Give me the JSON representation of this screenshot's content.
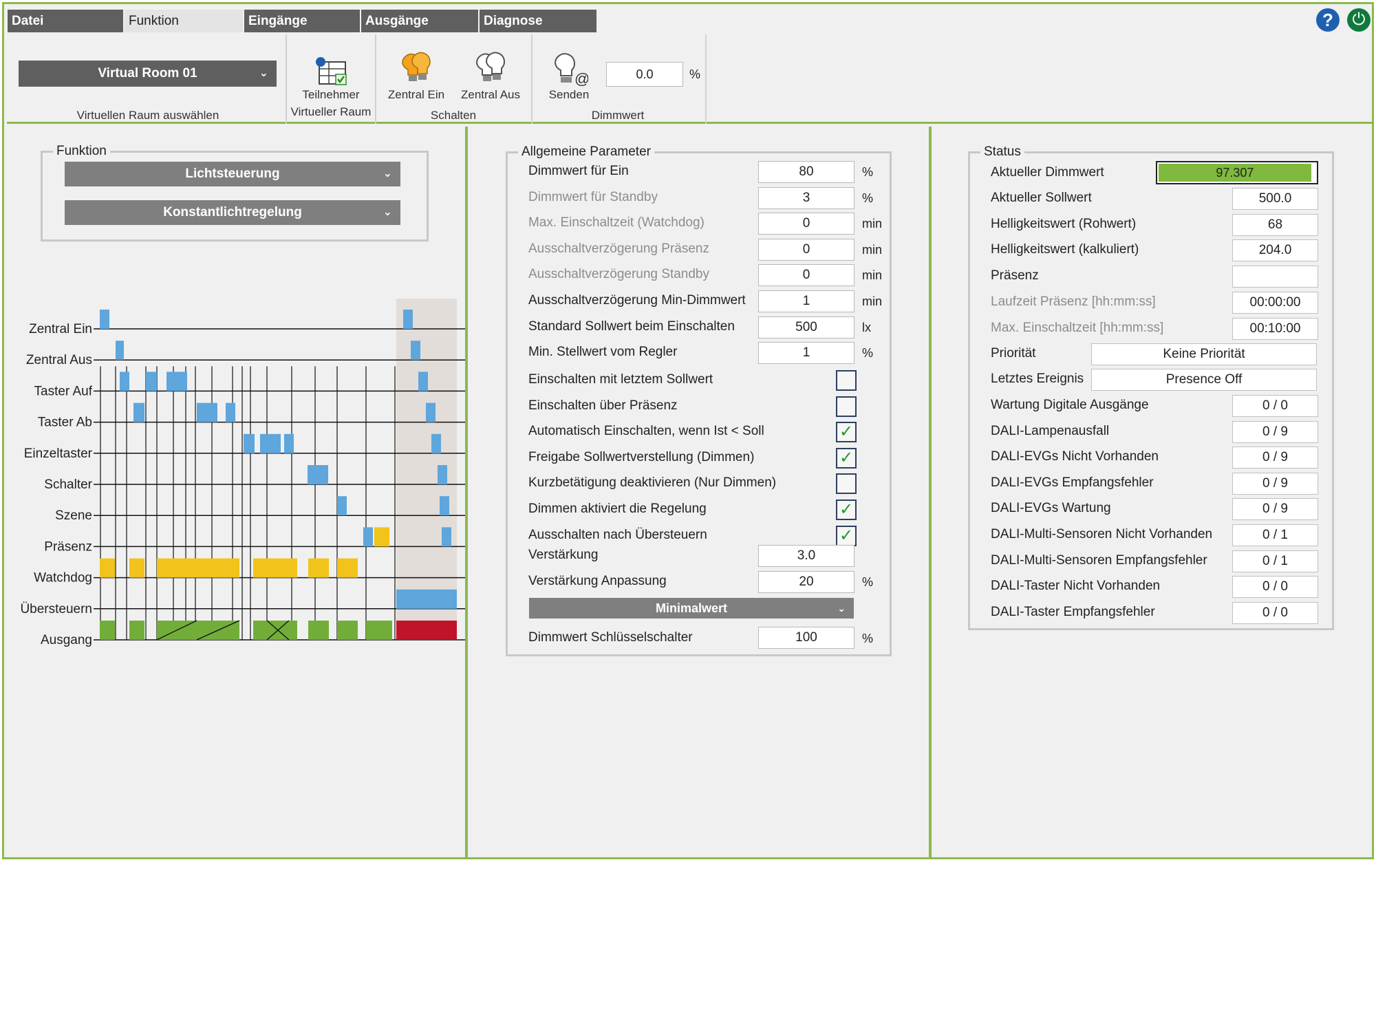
{
  "menu": {
    "tabs": [
      "Datei",
      "Funktion",
      "Eingänge",
      "Ausgänge",
      "Diagnose"
    ],
    "active": "Funktion"
  },
  "icons": {
    "help": "help-icon",
    "power": "power-icon"
  },
  "ribbon": {
    "room_select": "Virtual Room 01",
    "room_group_label": "Virtuellen Raum auswählen",
    "participants_label_1": "Teilnehmer",
    "participants_label_2": "Virtueller Raum",
    "zentral_ein": "Zentral Ein",
    "zentral_aus": "Zentral Aus",
    "schalten_label": "Schalten",
    "senden": "Senden",
    "dimmwert_value": "0.0",
    "dimmwert_unit": "%",
    "dimmwert_label": "Dimmwert"
  },
  "funktion": {
    "title": "Funktion",
    "dropdown1": "Lichtsteuerung",
    "dropdown2": "Konstantlichtregelung"
  },
  "timing": {
    "rows": [
      "Zentral Ein",
      "Zentral Aus",
      "Taster Auf",
      "Taster Ab",
      "Einzeltaster",
      "Schalter",
      "Szene",
      "Präsenz",
      "Watchdog",
      "Übersteuern",
      "Ausgang"
    ]
  },
  "parameters": {
    "title": "Allgemeine Parameter",
    "rows": [
      {
        "label": "Dimmwert für Ein",
        "value": "80",
        "unit": "%",
        "dim": false
      },
      {
        "label": "Dimmwert für Standby",
        "value": "3",
        "unit": "%",
        "dim": true
      },
      {
        "label": "Max. Einschaltzeit (Watchdog)",
        "value": "0",
        "unit": "min",
        "dim": true
      },
      {
        "label": "Ausschaltverzögerung Präsenz",
        "value": "0",
        "unit": "min",
        "dim": true
      },
      {
        "label": "Ausschaltverzögerung Standby",
        "value": "0",
        "unit": "min",
        "dim": true
      },
      {
        "label": "Ausschaltverzögerung Min-Dimmwert",
        "value": "1",
        "unit": "min",
        "dim": false
      },
      {
        "label": "Standard Sollwert beim Einschalten",
        "value": "500",
        "unit": "lx",
        "dim": false
      },
      {
        "label": "Min. Stellwert vom Regler",
        "value": "1",
        "unit": "%",
        "dim": false
      }
    ],
    "checks": [
      {
        "label": "Einschalten mit letztem Sollwert",
        "checked": false
      },
      {
        "label": "Einschalten über Präsenz",
        "checked": false
      },
      {
        "label": "Automatisch Einschalten, wenn Ist < Soll",
        "checked": true
      },
      {
        "label": "Freigabe Sollwertverstellung (Dimmen)",
        "checked": true
      },
      {
        "label": "Kurzbetätigung deaktivieren (Nur Dimmen)",
        "checked": false
      },
      {
        "label": "Dimmen aktiviert die Regelung",
        "checked": true
      },
      {
        "label": "Ausschalten nach Übersteuern",
        "checked": true
      }
    ],
    "verstaerkung": {
      "label": "Verstärkung",
      "value": "3.0"
    },
    "verstaerkung_anpassung": {
      "label": "Verstärkung Anpassung",
      "value": "20",
      "unit": "%"
    },
    "minimalwert": "Minimalwert",
    "schluessel": {
      "label": "Dimmwert Schlüsselschalter",
      "value": "100",
      "unit": "%"
    }
  },
  "status": {
    "title": "Status",
    "dimmwert": {
      "label": "Aktueller Dimmwert",
      "value": "97.307",
      "fraction": 0.973
    },
    "rows": [
      {
        "label": "Aktueller Sollwert",
        "value": "500.0",
        "dim": false
      },
      {
        "label": "Helligkeitswert (Rohwert)",
        "value": "68",
        "dim": false
      },
      {
        "label": "Helligkeitswert (kalkuliert)",
        "value": "204.0",
        "dim": false
      },
      {
        "label": "Präsenz",
        "value": "",
        "dim": false
      },
      {
        "label": "Laufzeit Präsenz [hh:mm:ss]",
        "value": "00:00:00",
        "dim": true
      },
      {
        "label": "Max. Einschaltzeit [hh:mm:ss]",
        "value": "00:10:00",
        "dim": true
      }
    ],
    "prioritaet": {
      "label": "Priorität",
      "value": "Keine Priorität"
    },
    "ereignis": {
      "label": "Letztes Ereignis",
      "value": "Presence Off"
    },
    "counters": [
      {
        "label": "Wartung Digitale Ausgänge",
        "value": "0 / 0"
      },
      {
        "label": "DALI-Lampenausfall",
        "value": "0 / 9"
      },
      {
        "label": "DALI-EVGs Nicht Vorhanden",
        "value": "0 / 9"
      },
      {
        "label": "DALI-EVGs Empfangsfehler",
        "value": "0 / 9"
      },
      {
        "label": "DALI-EVGs Wartung",
        "value": "0 / 9"
      },
      {
        "label": "DALI-Multi-Sensoren Nicht Vorhanden",
        "value": "0 / 1"
      },
      {
        "label": "DALI-Multi-Sensoren Empfangsfehler",
        "value": "0 / 1"
      },
      {
        "label": "DALI-Taster Nicht Vorhanden",
        "value": "0 / 0"
      },
      {
        "label": "DALI-Taster Empfangsfehler",
        "value": "0 / 0"
      }
    ]
  }
}
